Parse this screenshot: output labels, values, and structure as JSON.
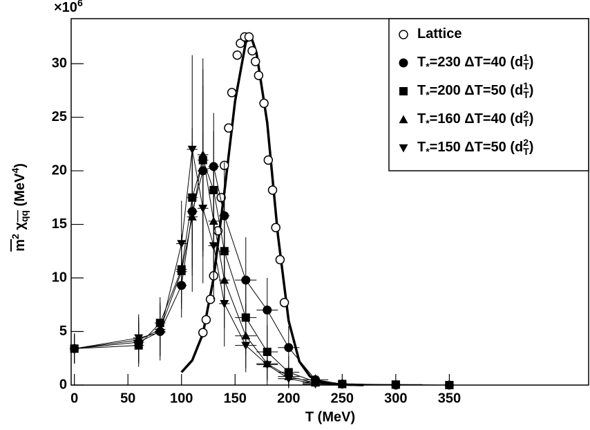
{
  "chart_data": {
    "type": "scatter",
    "xlabel": "T (MeV)",
    "ylabel": [
      {
        "text": "m",
        "over": true
      },
      {
        "text": "2",
        "sup": true
      },
      {
        "text": " χ"
      },
      {
        "text": "qq",
        "sub": true,
        "over": true
      },
      {
        "text": " (MeV"
      },
      {
        "text": "4",
        "sup": true
      },
      {
        "text": ")"
      }
    ],
    "y_multiplier": [
      {
        "text": "×10"
      },
      {
        "text": "6",
        "sup": true
      }
    ],
    "xlim": [
      -3,
      480
    ],
    "ylim": [
      0,
      34.2
    ],
    "xticks": [
      0,
      50,
      100,
      150,
      200,
      250,
      300,
      350
    ],
    "yticks": [
      0,
      5,
      10,
      15,
      20,
      25,
      30
    ],
    "legend": "top-right",
    "x": [
      0,
      60,
      80,
      100,
      110,
      120,
      130,
      140,
      160,
      180,
      200,
      225,
      250,
      300,
      350
    ],
    "xerr": [
      3,
      5,
      5,
      5,
      5,
      5,
      5,
      5,
      10,
      10,
      10,
      12,
      12,
      25,
      25
    ],
    "curve": {
      "color": "#000000",
      "x": [
        100,
        110,
        120,
        130,
        140,
        150,
        160,
        165,
        170,
        180,
        190,
        200,
        210,
        220,
        230,
        240,
        250,
        270
      ],
      "values": [
        1.2,
        2.3,
        4.8,
        10.0,
        18.0,
        26.5,
        32.0,
        32.5,
        31.0,
        24.5,
        14.0,
        6.0,
        2.2,
        0.8,
        0.3,
        0.1,
        0.05,
        0
      ]
    },
    "series": [
      {
        "name": [
          {
            "text": "Lattice"
          }
        ],
        "marker": "open-circle",
        "color": "#000000",
        "x": [
          120,
          123,
          127,
          130,
          134,
          137,
          140,
          144,
          147,
          152,
          155,
          159,
          163,
          166,
          169,
          172,
          177,
          181,
          185,
          188,
          192,
          196
        ],
        "values": [
          4.9,
          6.1,
          8.0,
          10.2,
          14.4,
          17.5,
          20.5,
          24.0,
          27.3,
          30.8,
          31.9,
          32.5,
          32.5,
          31.2,
          30.2,
          28.9,
          26.3,
          21.0,
          18.2,
          14.7,
          11.7,
          7.7
        ]
      },
      {
        "name": [
          {
            "text": "T"
          },
          {
            "text": "*",
            "sub": true
          },
          {
            "text": "=230 ΔT=40 (d"
          },
          {
            "text": "1",
            "sup": true
          },
          {
            "text": "T",
            "sub": true
          },
          {
            "text": ")"
          }
        ],
        "marker": "circle",
        "color": "#000000",
        "values": [
          3.4,
          4.0,
          5.0,
          9.3,
          16.2,
          20.0,
          20.4,
          15.8,
          9.8,
          7.0,
          3.5,
          0.5,
          0.1,
          0,
          0
        ],
        "errors": [
          1.4,
          2.0,
          2.3,
          3.0,
          6.0,
          8.0,
          5.0,
          5.0,
          4.0,
          3.0,
          2.0,
          0.5,
          0.3,
          0.1,
          0.1
        ]
      },
      {
        "name": [
          {
            "text": "T"
          },
          {
            "text": "*",
            "sub": true
          },
          {
            "text": "=200 ΔT=50 (d"
          },
          {
            "text": "1",
            "sup": true
          },
          {
            "text": "T",
            "sub": true
          },
          {
            "text": ")"
          }
        ],
        "marker": "square",
        "color": "#000000",
        "values": [
          3.4,
          3.7,
          5.8,
          10.8,
          17.5,
          21.0,
          18.2,
          12.5,
          6.3,
          3.1,
          1.2,
          0.3,
          0.1,
          0.05,
          0
        ],
        "errors": [
          1.4,
          2.0,
          2.4,
          3.2,
          6.5,
          8.5,
          5.5,
          5.0,
          3.5,
          2.5,
          1.5,
          0.4,
          0.2,
          0.1,
          0.1
        ]
      },
      {
        "name": [
          {
            "text": "T"
          },
          {
            "text": "*",
            "sub": true
          },
          {
            "text": "=160 ΔT=40 (d"
          },
          {
            "text": "2",
            "sup": true
          },
          {
            "text": "T",
            "sub": true
          },
          {
            "text": ")"
          }
        ],
        "marker": "triangle-up",
        "color": "#000000",
        "values": [
          3.4,
          4.2,
          5.2,
          10.6,
          15.7,
          21.5,
          15.3,
          9.8,
          4.6,
          2.0,
          0.8,
          0.2,
          0.05,
          0,
          0
        ],
        "errors": [
          1.4,
          2.1,
          2.5,
          3.5,
          7.0,
          9.0,
          5.5,
          4.5,
          3.0,
          2.0,
          1.0,
          0.3,
          0.1,
          0.1,
          0.1
        ]
      },
      {
        "name": [
          {
            "text": "T"
          },
          {
            "text": "*",
            "sub": true
          },
          {
            "text": "=150 ΔT=50 (d"
          },
          {
            "text": "2",
            "sup": true
          },
          {
            "text": "T",
            "sub": true
          },
          {
            "text": ")"
          }
        ],
        "marker": "triangle-down",
        "color": "#000000",
        "values": [
          3.4,
          4.4,
          4.9,
          13.2,
          22.0,
          16.5,
          13.0,
          7.6,
          3.7,
          1.9,
          0.6,
          0.1,
          0.05,
          0,
          0
        ],
        "errors": [
          1.4,
          2.2,
          2.6,
          4.0,
          8.8,
          7.0,
          5.0,
          4.0,
          2.5,
          1.5,
          0.8,
          0.2,
          0.1,
          0.1,
          0.1
        ]
      }
    ]
  }
}
